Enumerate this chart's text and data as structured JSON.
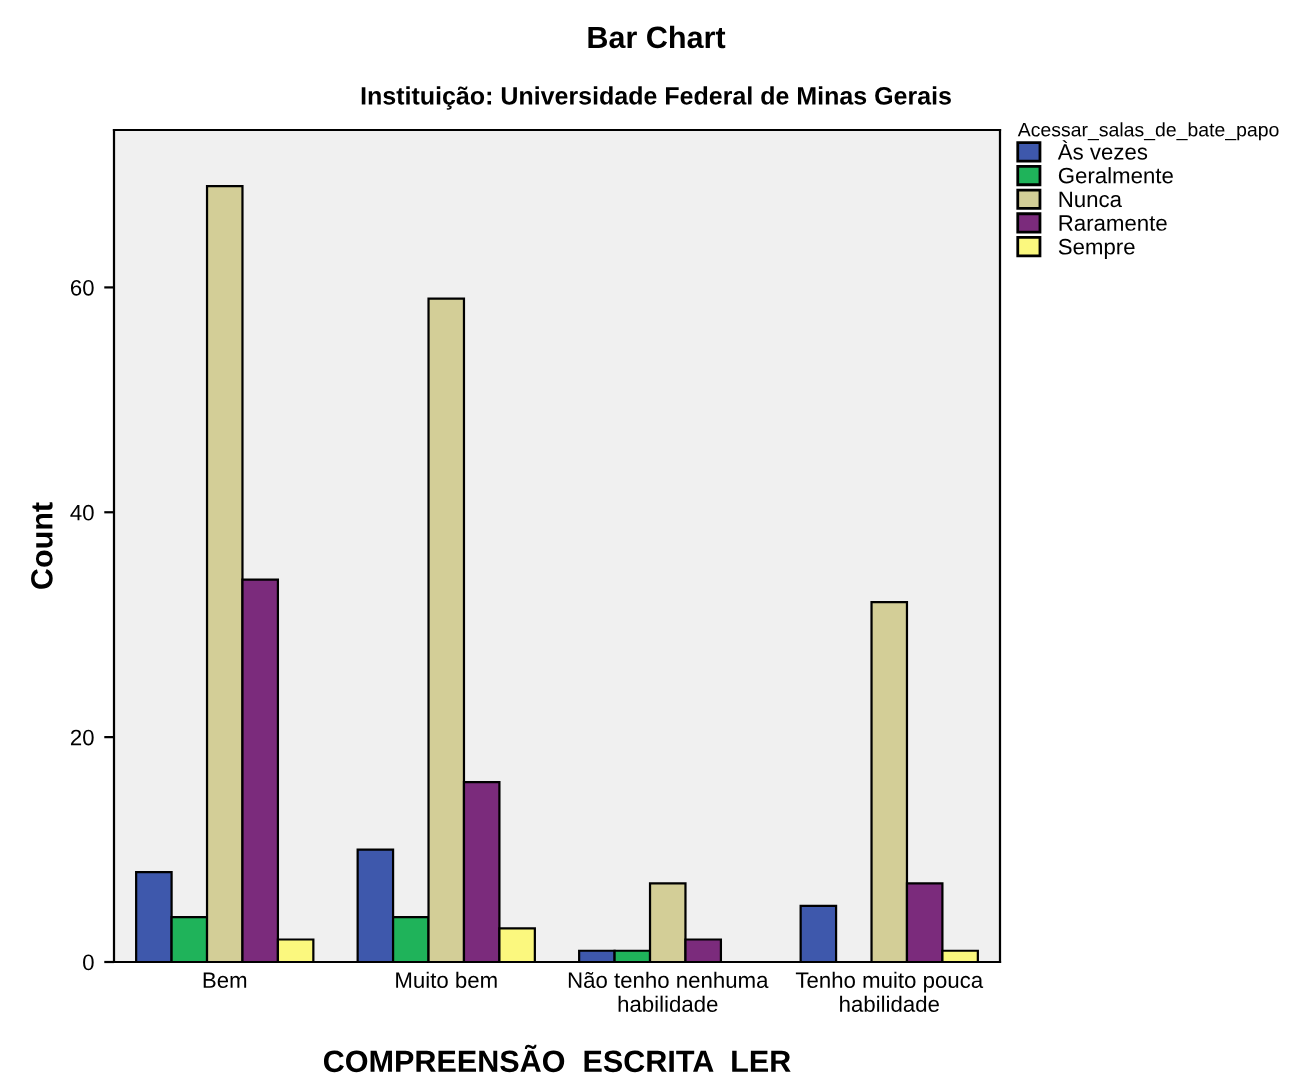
{
  "chart_data": {
    "type": "bar",
    "title": "Bar Chart",
    "subtitle": "Instituição: Universidade Federal de Minas Gerais",
    "xlabel": "COMPREENSÃO  ESCRITA  LER",
    "ylabel": "Count",
    "legend_title": "Acessar_salas_de_bate_papo",
    "categories": [
      "Bem",
      "Muito bem",
      "Não tenho nenhuma\nhabilidade",
      "Tenho muito pouca\nhabilidade"
    ],
    "series": [
      {
        "name": "Às vezes",
        "color": "#3e58ac",
        "values": [
          8,
          10,
          1,
          5
        ]
      },
      {
        "name": "Geralmente",
        "color": "#1fb35a",
        "values": [
          4,
          4,
          1,
          null
        ]
      },
      {
        "name": "Nunca",
        "color": "#d3ce97",
        "values": [
          69,
          59,
          7,
          32
        ]
      },
      {
        "name": "Raramente",
        "color": "#7b2b7c",
        "values": [
          34,
          16,
          2,
          7
        ]
      },
      {
        "name": "Sempre",
        "color": "#fbf87e",
        "values": [
          2,
          3,
          null,
          1
        ]
      }
    ],
    "ylim": [
      0,
      74
    ],
    "yticks": [
      0,
      20,
      40,
      60
    ],
    "grid": false,
    "legend": "right"
  }
}
